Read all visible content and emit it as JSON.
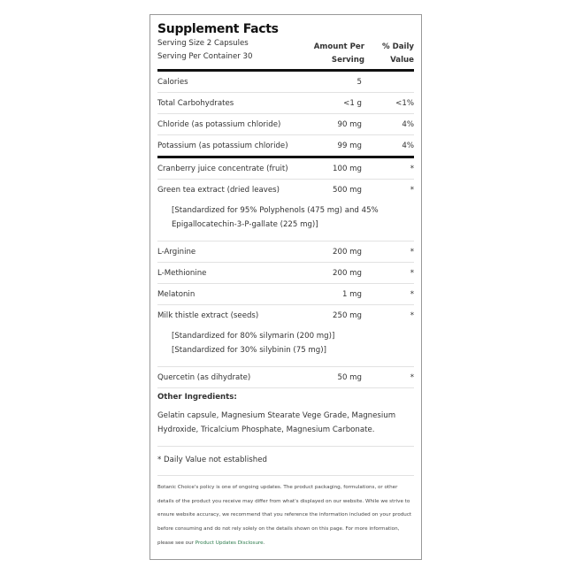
{
  "title": "Supplement Facts",
  "serving_size": "Serving Size 2 Capsules",
  "servings_per_container": "Serving Per Container 30",
  "col_amount": [
    "Amount Per",
    "Serving"
  ],
  "col_dv": [
    "% Daily",
    "Value"
  ],
  "nutrients": [
    {
      "name": "Calories",
      "amount": "5",
      "dv": ""
    },
    {
      "name": "Total Carbohydrates",
      "amount": "<1 g",
      "dv": "<1%"
    },
    {
      "name": "Chloride (as potassium chloride)",
      "amount": "90 mg",
      "dv": "4%"
    },
    {
      "name": "Potassium (as potassium chloride)",
      "amount": "99 mg",
      "dv": "4%"
    }
  ],
  "ingredients": [
    {
      "name": "Cranberry juice concentrate (fruit)",
      "amount": "100 mg",
      "dv": "*"
    },
    {
      "name": "Green tea extract (dried leaves)",
      "amount": "500 mg",
      "dv": "*",
      "std": [
        "[Standardized for 95% Polyphenols (475 mg) and 45%",
        "Epigallocatechin-3-P-gallate (225 mg)]"
      ]
    },
    {
      "name": "L-Arginine",
      "amount": "200 mg",
      "dv": "*"
    },
    {
      "name": "L-Methionine",
      "amount": "200 mg",
      "dv": "*"
    },
    {
      "name": "Melatonin",
      "amount": "1 mg",
      "dv": "*"
    },
    {
      "name": "Milk thistle extract (seeds)",
      "amount": "250 mg",
      "dv": "*",
      "std": [
        "[Standardized for 80% silymarin (200 mg)]",
        "[Standardized for 30% silybinin (75 mg)]"
      ]
    },
    {
      "name": "Quercetin (as dihydrate)",
      "amount": "50 mg",
      "dv": "*"
    }
  ],
  "other_heading": "Other Ingredients:",
  "other_text": "Gelatin capsule, Magnesium Stearate Vege Grade, Magnesium Hydroxide, Tricalcium Phosphate, Magnesium Carbonate.",
  "dv_note": "* Daily Value not established",
  "disclaimer": "Botanic Choice's policy is one of ongoing updates. The product packaging, formulations, or other details of the product you receive may differ from what's displayed on our website. While we strive to ensure website accuracy, we recommend that you reference the information included on your product before consuming and do not rely solely on the details shown on this page. For more information, please see our ",
  "disclaimer_link": "Product Updates Disclosure",
  "disclaimer_end": ".",
  "link_color": "#2a7a4a"
}
